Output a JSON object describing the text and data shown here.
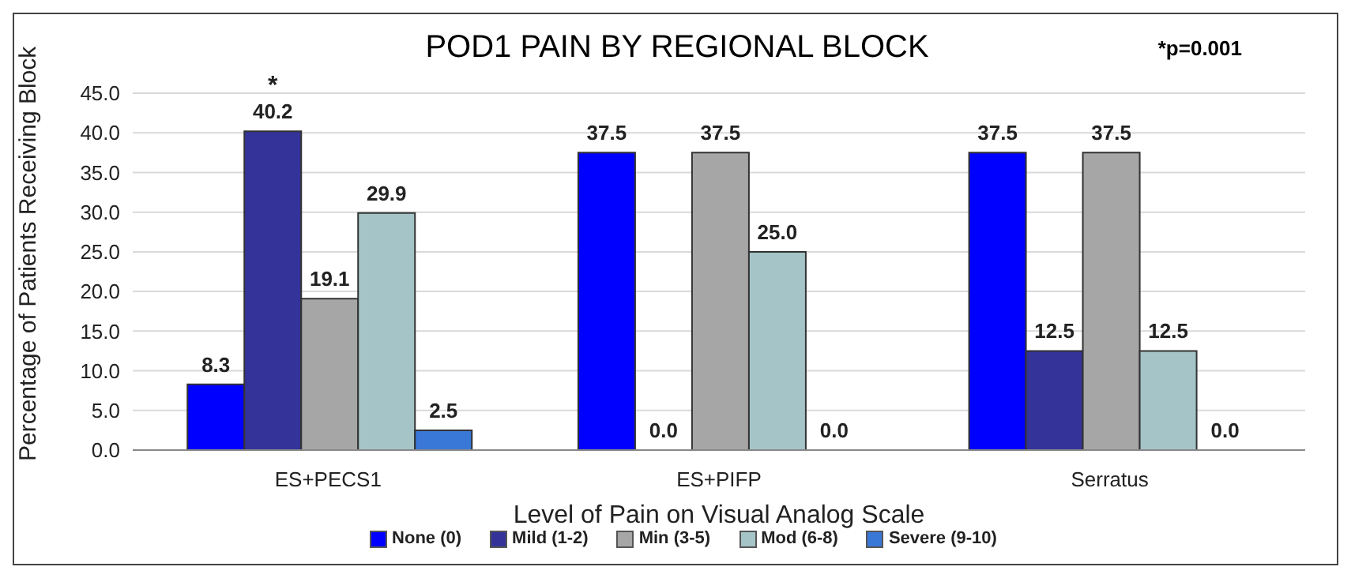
{
  "chart_data": {
    "type": "bar",
    "title": "POD1 PAIN BY REGIONAL BLOCK",
    "xlabel": "Level of Pain on Visual Analog Scale",
    "ylabel": "Percentage of Patients Receiving Block",
    "categories": [
      "ES+PECS1",
      "ES+PIFP",
      "Serratus"
    ],
    "series": [
      {
        "name": "None (0)",
        "color": "#0000ff",
        "values": [
          8.3,
          37.5,
          37.5
        ],
        "value_labels": [
          "8.3",
          "37.5",
          "37.5"
        ]
      },
      {
        "name": "Mild (1-2)",
        "color": "#333399",
        "values": [
          40.2,
          0,
          12.5
        ],
        "value_labels": [
          "40.2",
          "0.0",
          "12.5"
        ]
      },
      {
        "name": "Min (3-5)",
        "color": "#a6a6a6",
        "values": [
          19.1,
          37.5,
          37.5
        ],
        "value_labels": [
          "19.1",
          "37.5",
          "37.5"
        ]
      },
      {
        "name": "Mod (6-8)",
        "color": "#a5c4c8",
        "values": [
          29.9,
          25,
          12.5
        ],
        "value_labels": [
          "29.9",
          "25.0",
          "12.5"
        ]
      },
      {
        "name": "Severe (9-10)",
        "color": "#3a78d8",
        "values": [
          2.5,
          0,
          0
        ],
        "value_labels": [
          "2.5",
          "0.0",
          "0.0"
        ]
      }
    ],
    "ylim": [
      0,
      45
    ],
    "yticks": [
      {
        "value": 0,
        "label": "0.0"
      },
      {
        "value": 5,
        "label": "5.0"
      },
      {
        "value": 10,
        "label": "10.0"
      },
      {
        "value": 15,
        "label": "15.0"
      },
      {
        "value": 20,
        "label": "20.0"
      },
      {
        "value": 25,
        "label": "25.0"
      },
      {
        "value": 30,
        "label": "30.0"
      },
      {
        "value": 35,
        "label": "35.0"
      },
      {
        "value": 40,
        "label": "40.0"
      },
      {
        "value": 45,
        "label": "45.0"
      }
    ],
    "grid": "y",
    "legend": "bottom",
    "annotations": [
      "*",
      "*p=0.001"
    ]
  }
}
